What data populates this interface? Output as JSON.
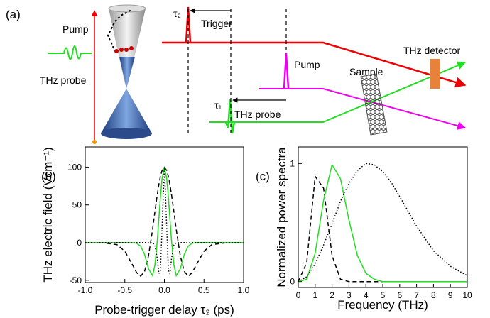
{
  "diagram": {
    "panel_label": "(a)",
    "pump_left": "Pump",
    "probe_left": "THz probe",
    "tau2": "τ₂",
    "trigger": "Trigger",
    "pump_right": "Pump",
    "sample": "Sample",
    "detector": "THz detector",
    "tau1": "τ₁",
    "probe_right": "THz probe"
  },
  "chart_data": [
    {
      "type": "line",
      "panel_label": "(b)",
      "x_label": "Probe-trigger delay τ₂ (ps)",
      "y_label": "THz electric field (Vcm⁻¹)",
      "x": [
        -1,
        -0.8,
        -0.6,
        -0.5,
        -0.4,
        -0.35,
        -0.3,
        -0.25,
        -0.2,
        -0.15,
        -0.12,
        -0.09,
        -0.07,
        -0.05,
        -0.03,
        0,
        0.03,
        0.05,
        0.07,
        0.09,
        0.12,
        0.15,
        0.2,
        0.25,
        0.3,
        0.35,
        0.4,
        0.5,
        0.6,
        0.8,
        1
      ],
      "series": [
        {
          "color": "#000000",
          "style": "dashed",
          "values": [
            0,
            0,
            -2.7,
            -11.4,
            -30.1,
            -40.0,
            -44.6,
            -38.2,
            -17.1,
            17.2,
            40.9,
            63.8,
            77.1,
            87.9,
            95.6,
            100,
            95.6,
            87.9,
            77.1,
            63.8,
            40.9,
            17.2,
            -17.1,
            -38.2,
            -44.6,
            -40.0,
            -30.1,
            -11.4,
            -2.7,
            0,
            0
          ]
        },
        {
          "color": "#22dd22",
          "style": "solid",
          "values": [
            0,
            0,
            0,
            0,
            -0.1,
            -1.0,
            -4.7,
            -15.8,
            -35.0,
            -43.9,
            -30.0,
            2.6,
            31.4,
            60.7,
            84.7,
            100,
            84.7,
            60.7,
            31.4,
            2.6,
            -30.0,
            -43.9,
            -35.0,
            -15.8,
            -4.7,
            -1.0,
            -0.1,
            0,
            0,
            0,
            0
          ]
        },
        {
          "color": "#000000",
          "style": "dotted",
          "values": [
            0,
            0,
            0,
            0,
            0,
            0,
            0,
            0,
            0,
            -0.2,
            -3.3,
            -21.5,
            -41.1,
            -36.8,
            19.5,
            100,
            19.5,
            -36.8,
            -41.1,
            -21.5,
            -3.3,
            -0.2,
            0,
            0,
            0,
            0,
            0,
            0,
            0,
            0,
            0
          ]
        }
      ],
      "xlim": [
        -1,
        1
      ],
      "xticks": [
        {
          "value": -1,
          "label": "-1.0"
        },
        -0.5,
        {
          "value": 0,
          "label": "0.0"
        },
        0.5,
        {
          "value": 1,
          "label": "1.0"
        }
      ],
      "ylim": [
        -53,
        127
      ],
      "yticks": [
        -50,
        0,
        50,
        100
      ]
    },
    {
      "type": "line",
      "panel_label": "(c)",
      "x_label": "Frequency (THz)",
      "y_label": "Normalized power spectra",
      "x": [
        0,
        0.5,
        1,
        1.5,
        2,
        2.5,
        3,
        3.5,
        4,
        4.5,
        5,
        5.5,
        6,
        7,
        8,
        9,
        10
      ],
      "series": [
        {
          "color": "#000000",
          "style": "dashed",
          "values": [
            0,
            0.16,
            0.89,
            0.79,
            0.22,
            0.02,
            0,
            0,
            0,
            0,
            0,
            0,
            0,
            0,
            0,
            0,
            0
          ]
        },
        {
          "color": "#22dd22",
          "style": "solid",
          "values": [
            0,
            0.02,
            0.24,
            0.69,
            0.99,
            0.87,
            0.52,
            0.22,
            0.07,
            0.02,
            0,
            0,
            0,
            0,
            0,
            0,
            0
          ]
        },
        {
          "color": "#000000",
          "style": "dotted",
          "values": [
            0,
            0.04,
            0.15,
            0.31,
            0.49,
            0.68,
            0.83,
            0.94,
            1.0,
            0.99,
            0.93,
            0.84,
            0.72,
            0.47,
            0.26,
            0.13,
            0.05
          ]
        }
      ],
      "xlim": [
        0,
        10
      ],
      "xticks": [
        0,
        1,
        2,
        3,
        4,
        5,
        6,
        7,
        8,
        9,
        10
      ],
      "ylim": [
        -0.05,
        1.14
      ],
      "yticks": [
        0,
        1
      ]
    }
  ]
}
